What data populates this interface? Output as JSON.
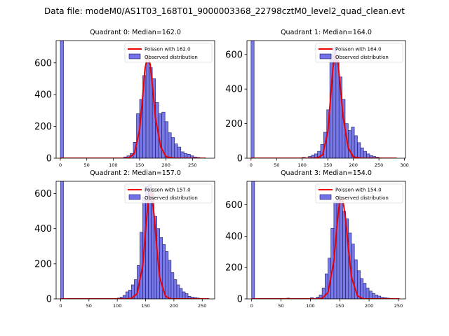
{
  "figure_title": "Data file: modeM0/AS1T03_168T01_9000003368_22798cztM0_level2_quad_clean.evt",
  "colors": {
    "bar_fill": "#7272e6",
    "bar_edge": "#1a1a66",
    "poisson_line": "#ee0000",
    "axis": "#000000"
  },
  "chart_data": [
    {
      "type": "bar",
      "title": "Quadrant 0: Median=162.0",
      "legend": [
        "Poisson with 162.0",
        "Observed distribution"
      ],
      "legend_position": "top-right",
      "median": 162.0,
      "xlim": [
        -8,
        292
      ],
      "ylim": [
        0,
        740
      ],
      "xticks": [
        0,
        50,
        100,
        150,
        200,
        250
      ],
      "yticks": [
        0,
        200,
        400,
        600
      ],
      "bin_width": 6,
      "bins": [
        [
          0,
          740
        ],
        [
          120,
          8
        ],
        [
          126,
          15
        ],
        [
          132,
          30
        ],
        [
          138,
          100
        ],
        [
          144,
          280
        ],
        [
          150,
          370
        ],
        [
          156,
          520
        ],
        [
          162,
          600
        ],
        [
          168,
          570
        ],
        [
          174,
          500
        ],
        [
          180,
          350
        ],
        [
          186,
          280
        ],
        [
          192,
          290
        ],
        [
          198,
          230
        ],
        [
          204,
          160
        ],
        [
          210,
          130
        ],
        [
          216,
          90
        ],
        [
          222,
          70
        ],
        [
          228,
          40
        ],
        [
          234,
          30
        ],
        [
          240,
          25
        ],
        [
          246,
          15
        ],
        [
          252,
          8
        ],
        [
          258,
          5
        ]
      ],
      "poisson_x": [
        0,
        120,
        130,
        140,
        150,
        155,
        160,
        165,
        170,
        175,
        180,
        190,
        200,
        215,
        240,
        275
      ],
      "poisson_y": [
        0,
        0,
        3,
        30,
        180,
        360,
        560,
        645,
        590,
        430,
        250,
        70,
        10,
        0,
        0,
        0
      ]
    },
    {
      "type": "bar",
      "title": "Quadrant 1: Median=164.0",
      "legend": [
        "Poisson with 164.0",
        "Observed distribution"
      ],
      "legend_position": "top-right",
      "median": 164.0,
      "xlim": [
        -8,
        302
      ],
      "ylim": [
        0,
        680
      ],
      "xticks": [
        0,
        50,
        100,
        150,
        200,
        250,
        300
      ],
      "yticks": [
        0,
        200,
        400,
        600
      ],
      "bin_width": 6,
      "bins": [
        [
          0,
          680
        ],
        [
          100,
          5
        ],
        [
          106,
          3
        ],
        [
          112,
          10
        ],
        [
          118,
          18
        ],
        [
          124,
          25
        ],
        [
          130,
          40
        ],
        [
          136,
          80
        ],
        [
          142,
          150
        ],
        [
          148,
          280
        ],
        [
          154,
          600
        ],
        [
          160,
          640
        ],
        [
          166,
          560
        ],
        [
          172,
          470
        ],
        [
          178,
          340
        ],
        [
          184,
          200
        ],
        [
          190,
          160
        ],
        [
          196,
          180
        ],
        [
          202,
          130
        ],
        [
          208,
          90
        ],
        [
          214,
          60
        ],
        [
          220,
          40
        ],
        [
          226,
          25
        ],
        [
          232,
          15
        ],
        [
          238,
          10
        ],
        [
          244,
          6
        ],
        [
          250,
          3
        ]
      ],
      "poisson_x": [
        0,
        120,
        130,
        140,
        150,
        155,
        160,
        165,
        170,
        175,
        180,
        190,
        200,
        215,
        240,
        285
      ],
      "poisson_y": [
        0,
        0,
        2,
        20,
        150,
        330,
        520,
        600,
        550,
        400,
        240,
        60,
        8,
        0,
        0,
        0
      ]
    },
    {
      "type": "bar",
      "title": "Quadrant 2: Median=157.0",
      "legend": [
        "Poisson with 157.0",
        "Observed distribution"
      ],
      "legend_position": "top-right",
      "median": 157.0,
      "xlim": [
        -8,
        272
      ],
      "ylim": [
        0,
        670
      ],
      "xticks": [
        0,
        50,
        100,
        150,
        200,
        250
      ],
      "yticks": [
        0,
        200,
        400,
        600
      ],
      "bin_width": 5,
      "bins": [
        [
          0,
          670
        ],
        [
          100,
          5
        ],
        [
          105,
          10
        ],
        [
          110,
          20
        ],
        [
          115,
          40
        ],
        [
          120,
          50
        ],
        [
          125,
          80
        ],
        [
          130,
          110
        ],
        [
          135,
          190
        ],
        [
          140,
          380
        ],
        [
          145,
          580
        ],
        [
          150,
          640
        ],
        [
          155,
          650
        ],
        [
          160,
          600
        ],
        [
          165,
          470
        ],
        [
          170,
          400
        ],
        [
          175,
          350
        ],
        [
          180,
          310
        ],
        [
          185,
          270
        ],
        [
          190,
          220
        ],
        [
          195,
          150
        ],
        [
          200,
          110
        ],
        [
          205,
          80
        ],
        [
          210,
          60
        ],
        [
          215,
          40
        ],
        [
          220,
          30
        ],
        [
          225,
          15
        ],
        [
          230,
          10
        ],
        [
          235,
          8
        ],
        [
          240,
          5
        ]
      ],
      "poisson_x": [
        0,
        115,
        125,
        135,
        145,
        150,
        155,
        160,
        165,
        170,
        175,
        185,
        195,
        210,
        240,
        262
      ],
      "poisson_y": [
        0,
        0,
        3,
        30,
        190,
        390,
        580,
        610,
        480,
        280,
        120,
        15,
        0,
        0,
        0,
        0
      ]
    },
    {
      "type": "bar",
      "title": "Quadrant 3: Median=154.0",
      "legend": [
        "Poisson with 154.0",
        "Observed distribution"
      ],
      "legend_position": "top-right",
      "median": 154.0,
      "xlim": [
        -8,
        262
      ],
      "ylim": [
        0,
        750
      ],
      "xticks": [
        0,
        50,
        100,
        150,
        200,
        250
      ],
      "yticks": [
        0,
        200,
        400,
        600
      ],
      "bin_width": 5,
      "bins": [
        [
          0,
          750
        ],
        [
          60,
          5
        ],
        [
          80,
          3
        ],
        [
          100,
          8
        ],
        [
          110,
          12
        ],
        [
          115,
          25
        ],
        [
          120,
          70
        ],
        [
          125,
          160
        ],
        [
          130,
          260
        ],
        [
          135,
          450
        ],
        [
          140,
          620
        ],
        [
          145,
          640
        ],
        [
          150,
          650
        ],
        [
          155,
          560
        ],
        [
          160,
          510
        ],
        [
          165,
          420
        ],
        [
          170,
          350
        ],
        [
          175,
          250
        ],
        [
          180,
          180
        ],
        [
          185,
          130
        ],
        [
          190,
          100
        ],
        [
          195,
          70
        ],
        [
          200,
          50
        ],
        [
          205,
          35
        ],
        [
          210,
          25
        ],
        [
          215,
          18
        ],
        [
          220,
          10
        ],
        [
          225,
          8
        ],
        [
          230,
          5
        ]
      ],
      "poisson_x": [
        0,
        110,
        120,
        130,
        140,
        145,
        150,
        155,
        160,
        165,
        170,
        180,
        190,
        205,
        230,
        252
      ],
      "poisson_y": [
        0,
        0,
        3,
        40,
        240,
        460,
        630,
        640,
        510,
        310,
        140,
        20,
        0,
        0,
        0,
        0
      ]
    }
  ]
}
